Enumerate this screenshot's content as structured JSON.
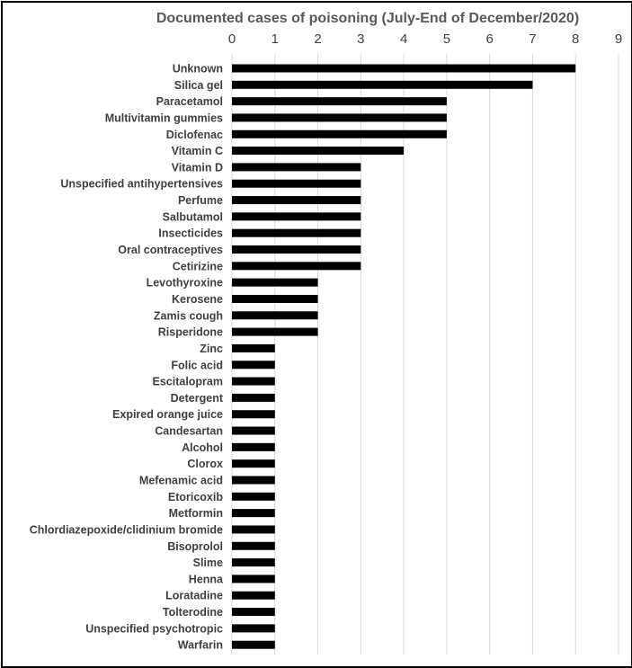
{
  "chart_data": {
    "type": "bar",
    "orientation": "horizontal",
    "title": "Documented cases of poisoning  (July-End of December/2020)",
    "xlim": [
      0,
      9
    ],
    "xticks": [
      0,
      1,
      2,
      3,
      4,
      5,
      6,
      7,
      8,
      9
    ],
    "x_axis_position": "top",
    "grid": true,
    "bar_color": "#000000",
    "categories": [
      "Unknown",
      "Silica gel",
      "Paracetamol",
      "Multivitamin gummies",
      "Diclofenac",
      "Vitamin C",
      "Vitamin D",
      "Unspecified antihypertensives",
      "Perfume",
      "Salbutamol",
      "Insecticides",
      "Oral contraceptives",
      "Cetirizine",
      "Levothyroxine",
      "Kerosene",
      "Zamis cough",
      "Risperidone",
      "Zinc",
      "Folic acid",
      "Escitalopram",
      "Detergent",
      "Expired orange juice",
      "Candesartan",
      "Alcohol",
      "Clorox",
      "Mefenamic acid",
      "Etoricoxib",
      "Metformin",
      "Chlordiazepoxide/clidinium bromide",
      "Bisoprolol",
      "Slime",
      "Henna",
      "Loratadine",
      "Tolterodine",
      "Unspecified psychotropic",
      "Warfarin"
    ],
    "values": [
      8,
      7,
      5,
      5,
      5,
      4,
      3,
      3,
      3,
      3,
      3,
      3,
      3,
      2,
      2,
      2,
      2,
      1,
      1,
      1,
      1,
      1,
      1,
      1,
      1,
      1,
      1,
      1,
      1,
      1,
      1,
      1,
      1,
      1,
      1,
      1
    ]
  }
}
